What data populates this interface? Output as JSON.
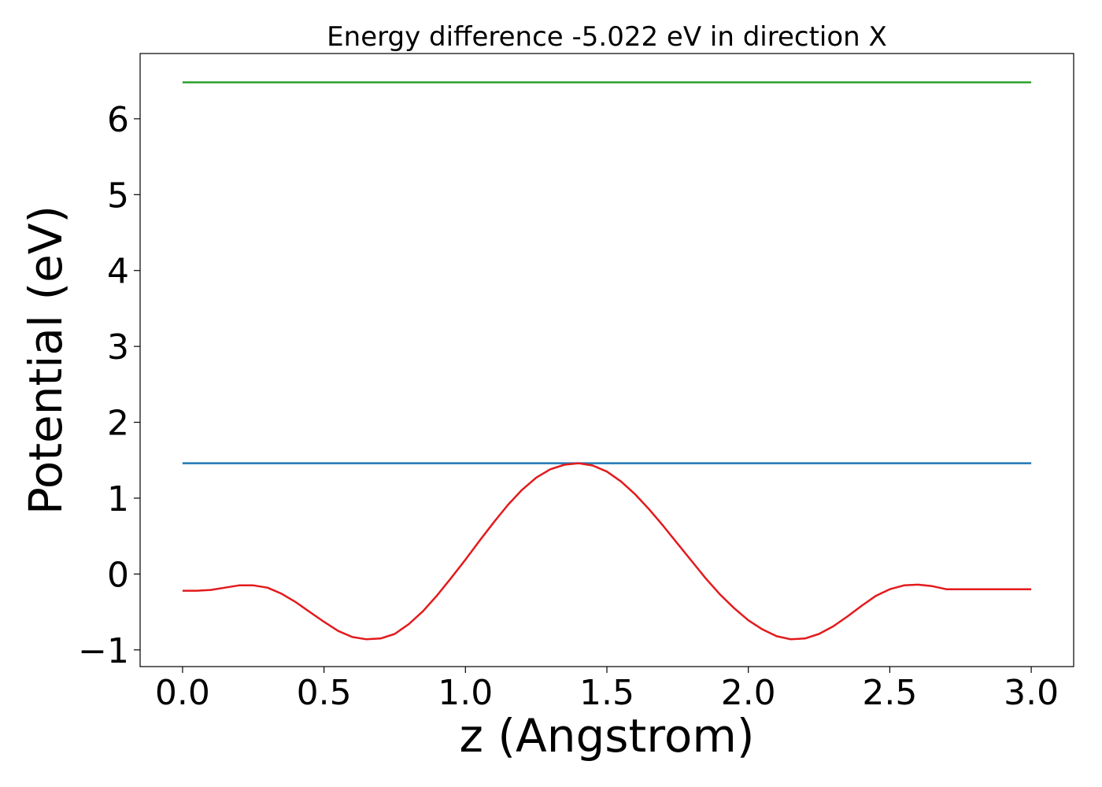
{
  "chart_data": {
    "type": "line",
    "title": "Energy difference -5.022 eV in direction X",
    "xlabel": "z (Angstrom)",
    "ylabel": "Potential (eV)",
    "xlim": [
      -0.15,
      3.15
    ],
    "ylim": [
      -1.22,
      6.86
    ],
    "xticks": [
      0.0,
      0.5,
      1.0,
      1.5,
      2.0,
      2.5,
      3.0
    ],
    "xtick_labels": [
      "0.0",
      "0.5",
      "1.0",
      "1.5",
      "2.0",
      "2.5",
      "3.0"
    ],
    "yticks": [
      -1,
      0,
      1,
      2,
      3,
      4,
      5,
      6
    ],
    "ytick_labels": [
      "−1",
      "0",
      "1",
      "2",
      "3",
      "4",
      "5",
      "6"
    ],
    "grid": false,
    "series": [
      {
        "color": "#2ca02c",
        "x": [
          0.0,
          3.0
        ],
        "y": [
          6.48,
          6.48
        ]
      },
      {
        "color": "#1f77b4",
        "x": [
          0.0,
          3.0
        ],
        "y": [
          1.46,
          1.46
        ]
      },
      {
        "color": "#e31a1c",
        "x": [
          0.0,
          0.05,
          0.1,
          0.15,
          0.2,
          0.25,
          0.3,
          0.35,
          0.4,
          0.45,
          0.5,
          0.55,
          0.6,
          0.65,
          0.7,
          0.75,
          0.8,
          0.85,
          0.9,
          0.95,
          1.0,
          1.05,
          1.1,
          1.15,
          1.2,
          1.25,
          1.3,
          1.35,
          1.4,
          1.45,
          1.5,
          1.55,
          1.6,
          1.65,
          1.7,
          1.75,
          1.8,
          1.85,
          1.9,
          1.95,
          2.0,
          2.05,
          2.1,
          2.15,
          2.2,
          2.25,
          2.3,
          2.35,
          2.4,
          2.45,
          2.5,
          2.55,
          2.6,
          2.65,
          2.7,
          2.75,
          2.8,
          2.85,
          2.9,
          2.95,
          3.0
        ],
        "y": [
          -0.22,
          -0.22,
          -0.21,
          -0.18,
          -0.15,
          -0.15,
          -0.18,
          -0.26,
          -0.37,
          -0.5,
          -0.63,
          -0.75,
          -0.83,
          -0.86,
          -0.85,
          -0.79,
          -0.66,
          -0.49,
          -0.28,
          -0.05,
          0.19,
          0.44,
          0.68,
          0.91,
          1.11,
          1.27,
          1.38,
          1.44,
          1.46,
          1.43,
          1.35,
          1.22,
          1.05,
          0.85,
          0.63,
          0.4,
          0.17,
          -0.06,
          -0.27,
          -0.45,
          -0.61,
          -0.73,
          -0.82,
          -0.86,
          -0.85,
          -0.79,
          -0.69,
          -0.56,
          -0.42,
          -0.29,
          -0.2,
          -0.15,
          -0.14,
          -0.16,
          -0.2,
          -0.2,
          -0.2,
          -0.2,
          -0.2,
          -0.2,
          -0.2
        ]
      }
    ]
  }
}
